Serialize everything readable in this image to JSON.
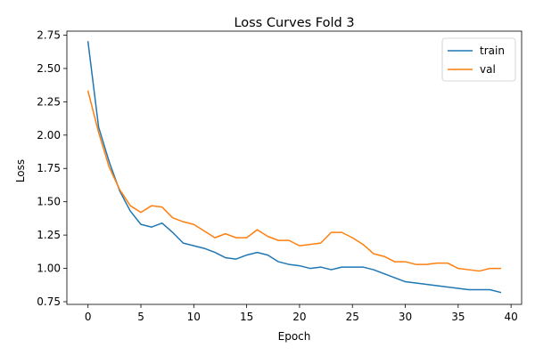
{
  "chart_data": {
    "type": "line",
    "title": "Loss Curves Fold 3",
    "xlabel": "Epoch",
    "ylabel": "Loss",
    "xlim": [
      -2,
      41
    ],
    "ylim": [
      0.73,
      2.78
    ],
    "xticks": [
      0,
      5,
      10,
      15,
      20,
      25,
      30,
      35,
      40
    ],
    "yticks": [
      0.75,
      1.0,
      1.25,
      1.5,
      1.75,
      2.0,
      2.25,
      2.5,
      2.75
    ],
    "grid": false,
    "legend_position": "top-right",
    "x": [
      0,
      1,
      2,
      3,
      4,
      5,
      6,
      7,
      8,
      9,
      10,
      11,
      12,
      13,
      14,
      15,
      16,
      17,
      18,
      19,
      20,
      21,
      22,
      23,
      24,
      25,
      26,
      27,
      28,
      29,
      30,
      31,
      32,
      33,
      34,
      35,
      36,
      37,
      38,
      39
    ],
    "series": [
      {
        "name": "train",
        "color": "#1f77b4",
        "values": [
          2.7,
          2.06,
          1.8,
          1.58,
          1.43,
          1.33,
          1.31,
          1.34,
          1.27,
          1.19,
          1.17,
          1.15,
          1.12,
          1.08,
          1.07,
          1.1,
          1.12,
          1.1,
          1.05,
          1.03,
          1.02,
          1.0,
          1.01,
          0.99,
          1.01,
          1.01,
          1.01,
          0.99,
          0.96,
          0.93,
          0.9,
          0.89,
          0.88,
          0.87,
          0.86,
          0.85,
          0.84,
          0.84,
          0.84,
          0.82
        ]
      },
      {
        "name": "val",
        "color": "#ff7f0e",
        "values": [
          2.33,
          2.02,
          1.76,
          1.59,
          1.47,
          1.42,
          1.47,
          1.46,
          1.38,
          1.35,
          1.33,
          1.28,
          1.23,
          1.26,
          1.23,
          1.23,
          1.29,
          1.24,
          1.21,
          1.21,
          1.17,
          1.18,
          1.19,
          1.27,
          1.27,
          1.23,
          1.18,
          1.11,
          1.09,
          1.05,
          1.05,
          1.03,
          1.03,
          1.04,
          1.04,
          1.0,
          0.99,
          0.98,
          1.0,
          1.0
        ]
      }
    ]
  }
}
